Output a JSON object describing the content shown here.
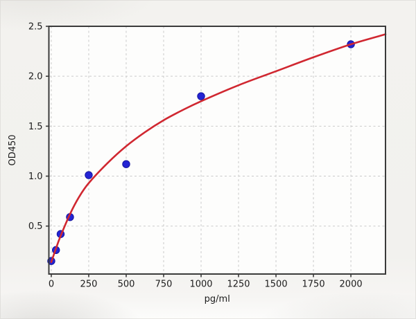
{
  "page": {
    "background_color": "#f2f1ee",
    "plot_background_color": "#fdfdfc"
  },
  "chart_data": {
    "type": "scatter",
    "xlabel": "pg/ml",
    "ylabel": "OD450",
    "xlim": [
      -16,
      2231
    ],
    "ylim": [
      0.02,
      2.5
    ],
    "grid": true,
    "grid_style": "dashed",
    "legend_position": "none",
    "xticks": {
      "values": [
        0,
        250,
        500,
        750,
        1000,
        1250,
        1500,
        1750,
        2000
      ],
      "labels": [
        "0",
        "250",
        "500",
        "750",
        "1000",
        "1250",
        "1500",
        "1750",
        "2000"
      ]
    },
    "yticks": {
      "values": [
        0.5,
        1.0,
        1.5,
        2.0,
        2.5
      ],
      "labels": [
        "0.5",
        "1.0",
        "1.5",
        "2.0",
        "2.5"
      ]
    },
    "series": [
      {
        "name": "standard-points",
        "type": "scatter",
        "marker": "circle",
        "color": "#2424d4",
        "edge_color": "#14149e",
        "x": [
          0,
          31.25,
          62.5,
          125,
          250,
          500,
          1000,
          2000
        ],
        "y": [
          0.15,
          0.26,
          0.42,
          0.59,
          1.01,
          1.12,
          1.8,
          2.32
        ]
      },
      {
        "name": "fitted-curve",
        "type": "line",
        "color": "#d02730",
        "x": [
          0,
          30,
          62,
          125,
          185,
          250,
          375,
          500,
          625,
          750,
          875,
          1000,
          1250,
          1500,
          1750,
          2000,
          2231
        ],
        "y": [
          0.14,
          0.27,
          0.4,
          0.62,
          0.79,
          0.93,
          1.13,
          1.3,
          1.44,
          1.56,
          1.66,
          1.75,
          1.91,
          2.05,
          2.19,
          2.32,
          2.42
        ]
      }
    ],
    "style": {
      "grid_color": "#c9c9c9",
      "spine_color": "#3a3a3a",
      "tick_color": "#3a3a3a",
      "text_color": "#1c1c1c"
    }
  }
}
